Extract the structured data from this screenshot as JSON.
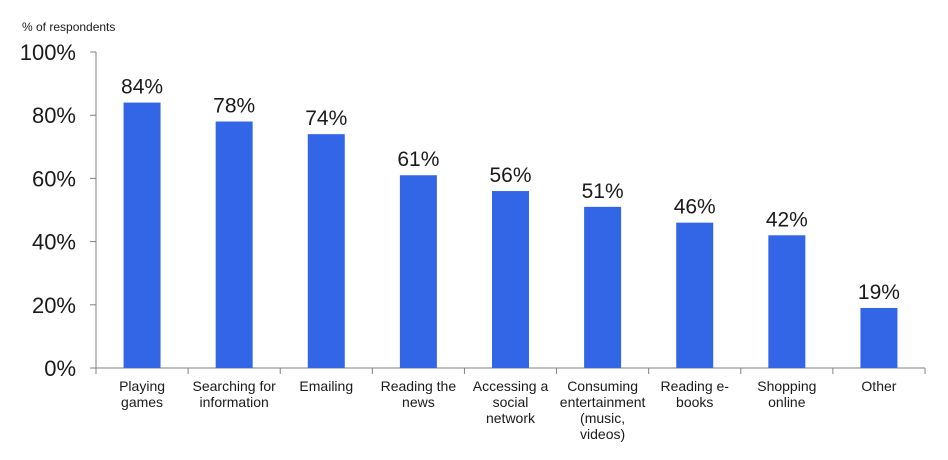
{
  "chart_data": {
    "type": "bar",
    "title": "",
    "ylabel": "% of respondents",
    "xlabel": "",
    "ylim": [
      0,
      100
    ],
    "yticks": [
      0,
      20,
      40,
      60,
      80,
      100
    ],
    "tick_suffix": "%",
    "grid": false,
    "legend": "none",
    "bar_color": "#3366e6",
    "categories": [
      [
        "Playing",
        "games"
      ],
      [
        "Searching for",
        "information"
      ],
      [
        "Emailing"
      ],
      [
        "Reading the",
        "news"
      ],
      [
        "Accessing a",
        "social",
        "network"
      ],
      [
        "Consuming",
        "entertainment",
        "(music,",
        "videos)"
      ],
      [
        "Reading e-",
        "books"
      ],
      [
        "Shopping",
        "online"
      ],
      [
        "Other"
      ]
    ],
    "values": [
      84,
      78,
      74,
      61,
      56,
      51,
      46,
      42,
      19
    ],
    "value_labels": [
      "84%",
      "78%",
      "74%",
      "61%",
      "56%",
      "51%",
      "46%",
      "42%",
      "19%"
    ]
  }
}
